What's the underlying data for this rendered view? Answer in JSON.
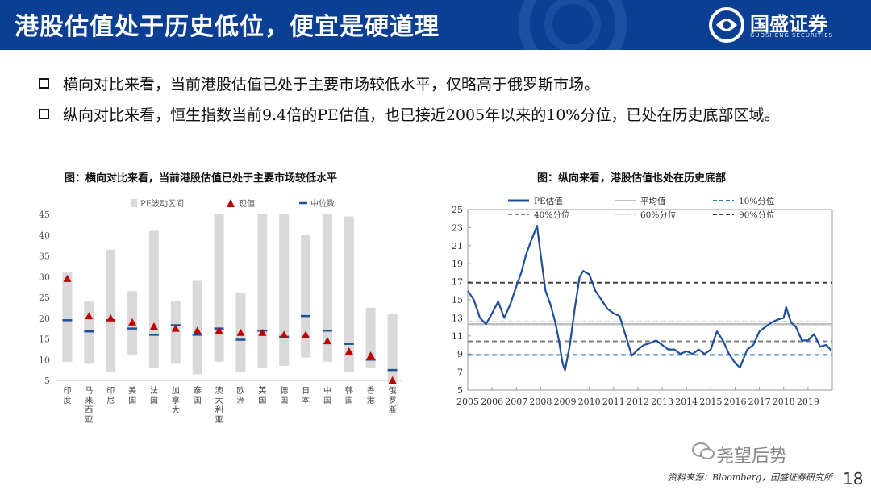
{
  "header": {
    "title": "港股估值处于历史低位，便宜是硬道理",
    "logo_name": "国盛证券",
    "logo_sub": "GUOSHENG SECURITIES",
    "bg_color": "#0b3f93"
  },
  "bullets": [
    "横向对比来看，当前港股估值已处于主要市场较低水平，仅略高于俄罗斯市场。",
    "纵向对比来看，恒生指数当前9.4倍的PE估值，也已接近2005年以来的10%分位，已处在历史底部区域。"
  ],
  "footer": {
    "source": "资料来源：Bloomberg，国盛证券研究所",
    "watermark": "尧望后势",
    "page_number": "18"
  },
  "chart_data": [
    {
      "type": "bar",
      "caption": "图：横向对比来看，当前港股估值已处于主要市场较低水平",
      "legend": [
        "PE波动区间",
        "现值",
        "中位数"
      ],
      "legend_position": "top",
      "categories": [
        "印度",
        "马来西亚",
        "印尼",
        "美国",
        "法国",
        "加拿大",
        "泰国",
        "澳大利亚",
        "欧洲",
        "英国",
        "德国",
        "日本",
        "中国",
        "韩国",
        "香港",
        "俄罗斯"
      ],
      "series": [
        {
          "name": "PE波动区间",
          "kind": "range",
          "low": [
            9.5,
            9.0,
            7.0,
            11.0,
            8.0,
            9.0,
            6.5,
            9.5,
            7.0,
            8.0,
            8.5,
            10.5,
            9.5,
            7.0,
            8.0,
            4.5
          ],
          "high": [
            31.0,
            24.0,
            36.5,
            26.5,
            41.0,
            24.0,
            29.0,
            45.0,
            26.0,
            45.0,
            45.0,
            40.0,
            45.0,
            44.5,
            22.5,
            21.0
          ]
        },
        {
          "name": "现值",
          "kind": "marker",
          "values": [
            29.5,
            20.5,
            20.0,
            19.0,
            18.0,
            17.5,
            17.0,
            17.0,
            16.5,
            16.5,
            16.0,
            16.0,
            14.5,
            12.0,
            11.0,
            5.0
          ]
        },
        {
          "name": "中位数",
          "kind": "dash",
          "values": [
            19.5,
            16.8,
            19.5,
            17.5,
            16.0,
            18.3,
            16.0,
            17.5,
            14.8,
            17.0,
            15.5,
            20.5,
            17.0,
            13.8,
            10.0,
            7.5
          ]
        }
      ],
      "ylim": [
        5,
        45
      ],
      "yticks": [
        5,
        10,
        15,
        20,
        25,
        30,
        35,
        40,
        45
      ],
      "colors": {
        "range": "#d9d9d9",
        "marker": "#c00000",
        "dash": "#1f4e9b"
      }
    },
    {
      "type": "line",
      "caption": "图：纵向来看，港股估值也处在历史底部",
      "legend_position": "top",
      "ylim": [
        5,
        25
      ],
      "yticks": [
        5,
        7,
        9,
        11,
        13,
        15,
        17,
        19,
        21,
        23,
        25
      ],
      "xlim": [
        2005,
        2020
      ],
      "xticks": [
        "2005",
        "2006",
        "2007",
        "2008",
        "2009",
        "2010",
        "2011",
        "2012",
        "2013",
        "2014",
        "2015",
        "2016",
        "2017",
        "2018",
        "2019"
      ],
      "series": [
        {
          "name": "PE估值",
          "color": "#1f4e9b",
          "x": [
            2005.0,
            2005.25,
            2005.5,
            2005.75,
            2006.0,
            2006.25,
            2006.5,
            2006.75,
            2007.0,
            2007.2,
            2007.4,
            2007.6,
            2007.75,
            2007.85,
            2008.0,
            2008.2,
            2008.4,
            2008.6,
            2008.75,
            2008.9,
            2009.0,
            2009.2,
            2009.4,
            2009.6,
            2009.75,
            2010.0,
            2010.25,
            2010.5,
            2010.75,
            2011.0,
            2011.25,
            2011.5,
            2011.75,
            2012.0,
            2012.25,
            2012.5,
            2012.75,
            2013.0,
            2013.25,
            2013.5,
            2013.75,
            2014.0,
            2014.25,
            2014.5,
            2014.75,
            2015.0,
            2015.25,
            2015.5,
            2015.75,
            2016.0,
            2016.2,
            2016.5,
            2016.75,
            2017.0,
            2017.25,
            2017.5,
            2017.75,
            2018.0,
            2018.1,
            2018.3,
            2018.5,
            2018.75,
            2019.0,
            2019.25,
            2019.5,
            2019.75,
            2019.95
          ],
          "y": [
            16.0,
            15.0,
            13.0,
            12.3,
            13.5,
            14.8,
            13.0,
            14.5,
            16.5,
            18.0,
            20.0,
            21.5,
            22.5,
            23.2,
            20.0,
            16.0,
            14.5,
            12.5,
            10.5,
            8.0,
            7.2,
            10.0,
            14.0,
            17.5,
            18.2,
            17.8,
            16.0,
            15.0,
            14.0,
            13.5,
            13.2,
            11.0,
            8.8,
            9.5,
            10.0,
            10.2,
            10.5,
            10.0,
            9.5,
            9.5,
            9.0,
            9.3,
            9.0,
            9.5,
            9.0,
            9.5,
            11.5,
            10.5,
            9.0,
            8.0,
            7.5,
            9.5,
            10.0,
            11.5,
            12.0,
            12.5,
            12.8,
            13.0,
            14.2,
            12.5,
            12.0,
            10.5,
            10.5,
            11.2,
            9.8,
            10.0,
            9.4
          ]
        },
        {
          "name": "平均值",
          "color": "#bfbfbf",
          "value": 12.3
        },
        {
          "name": "10%分位",
          "color": "#2e75b6",
          "value": 8.9
        },
        {
          "name": "40%分位",
          "color": "#7f7f7f",
          "value": 10.4
        },
        {
          "name": "60%分位",
          "color": "#d9d9d9",
          "value": 12.6
        },
        {
          "name": "90%分位",
          "color": "#404040",
          "value": 16.9
        }
      ]
    }
  ]
}
